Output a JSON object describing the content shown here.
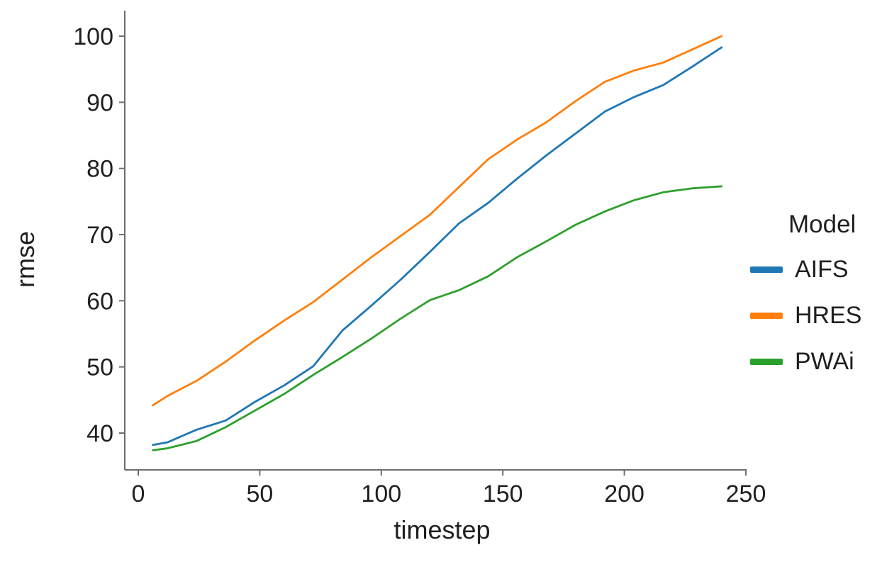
{
  "chart_data": {
    "type": "line",
    "title": "",
    "xlabel": "timestep",
    "ylabel": "rmse",
    "xlim": [
      -5,
      255
    ],
    "ylim": [
      36,
      101
    ],
    "x_ticks": [
      0,
      50,
      100,
      150,
      200,
      250
    ],
    "y_ticks": [
      40,
      50,
      60,
      70,
      80,
      90,
      100
    ],
    "grid": false,
    "legend": {
      "title": "Model",
      "position": "right"
    },
    "x": [
      6,
      12,
      24,
      36,
      48,
      60,
      72,
      84,
      96,
      108,
      120,
      132,
      144,
      156,
      168,
      180,
      192,
      204,
      216,
      228,
      240
    ],
    "series": [
      {
        "name": "AIFS",
        "color": "#1f77b4",
        "values": [
          38.2,
          38.6,
          40.5,
          41.9,
          44.7,
          47.2,
          50.1,
          55.5,
          59.3,
          63.2,
          67.4,
          71.7,
          74.8,
          78.5,
          82.0,
          85.3,
          88.6,
          90.8,
          92.6,
          95.4,
          98.3
        ]
      },
      {
        "name": "HRES",
        "color": "#ff7f0e",
        "values": [
          44.2,
          45.6,
          47.9,
          50.8,
          54.0,
          57.0,
          59.8,
          63.2,
          66.6,
          69.8,
          73.0,
          77.2,
          81.4,
          84.4,
          87.0,
          90.2,
          93.1,
          94.8,
          96.0,
          98.0,
          100.0
        ]
      },
      {
        "name": "PWAi",
        "color": "#2ca02c",
        "values": [
          37.4,
          37.7,
          38.8,
          40.9,
          43.4,
          45.9,
          48.8,
          51.5,
          54.3,
          57.3,
          60.1,
          61.6,
          63.7,
          66.6,
          69.0,
          71.5,
          73.5,
          75.2,
          76.4,
          77.0,
          77.3
        ]
      }
    ]
  }
}
